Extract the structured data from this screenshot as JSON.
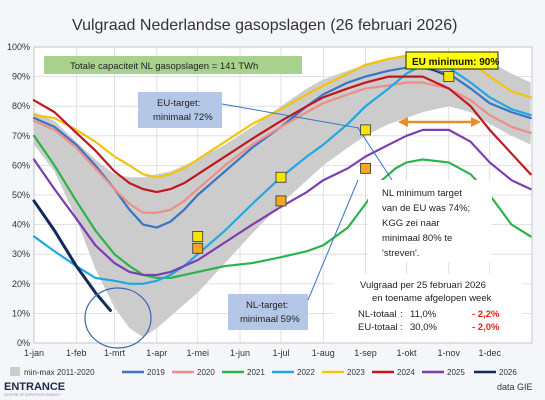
{
  "chart_data": {
    "type": "line",
    "title": "Vulgraad Nederlandse gasopslagen (26 februari 2026)",
    "ylim": [
      0,
      100
    ],
    "y_ticks": [
      "0%",
      "10%",
      "20%",
      "30%",
      "40%",
      "50%",
      "60%",
      "70%",
      "80%",
      "90%",
      "100%"
    ],
    "x_ticks": [
      "1-jan",
      "1-feb",
      "1-mrt",
      "1-apr",
      "1-mei",
      "1-jun",
      "1-jul",
      "1-aug",
      "1-sep",
      "1-okt",
      "1-nov",
      "1-dec"
    ],
    "x_tick_days": [
      0,
      31,
      59,
      90,
      120,
      151,
      181,
      212,
      243,
      273,
      304,
      334
    ],
    "grid": true,
    "legend_position": "bottom",
    "band": {
      "name": "min-max 2011-2020",
      "color": "#cccccc",
      "min": [
        [
          0,
          67
        ],
        [
          15,
          58
        ],
        [
          31,
          42
        ],
        [
          45,
          25
        ],
        [
          59,
          12
        ],
        [
          70,
          5
        ],
        [
          80,
          2
        ],
        [
          90,
          5
        ],
        [
          100,
          9
        ],
        [
          110,
          13
        ],
        [
          120,
          17
        ],
        [
          140,
          27
        ],
        [
          160,
          37
        ],
        [
          181,
          47
        ],
        [
          200,
          55
        ],
        [
          212,
          60
        ],
        [
          230,
          66
        ],
        [
          243,
          70
        ],
        [
          260,
          74
        ],
        [
          273,
          76
        ],
        [
          285,
          78
        ],
        [
          304,
          80
        ],
        [
          320,
          78
        ],
        [
          334,
          74
        ],
        [
          350,
          70
        ],
        [
          364,
          67
        ]
      ],
      "max": [
        [
          0,
          78
        ],
        [
          15,
          75
        ],
        [
          31,
          68
        ],
        [
          45,
          62
        ],
        [
          59,
          57
        ],
        [
          70,
          56
        ],
        [
          80,
          56
        ],
        [
          90,
          57
        ],
        [
          100,
          58
        ],
        [
          110,
          60
        ],
        [
          120,
          62
        ],
        [
          140,
          67
        ],
        [
          160,
          73
        ],
        [
          181,
          80
        ],
        [
          200,
          86
        ],
        [
          212,
          89
        ],
        [
          230,
          92
        ],
        [
          243,
          94
        ],
        [
          260,
          96
        ],
        [
          273,
          97
        ],
        [
          285,
          98
        ],
        [
          304,
          98
        ],
        [
          320,
          97
        ],
        [
          334,
          95
        ],
        [
          350,
          91
        ],
        [
          364,
          88
        ]
      ]
    },
    "series": [
      {
        "name": "2019",
        "color": "#3a74c4",
        "points": [
          [
            0,
            76
          ],
          [
            15,
            73
          ],
          [
            31,
            67
          ],
          [
            45,
            60
          ],
          [
            59,
            52
          ],
          [
            70,
            45
          ],
          [
            80,
            40
          ],
          [
            90,
            39
          ],
          [
            100,
            41
          ],
          [
            110,
            45
          ],
          [
            120,
            50
          ],
          [
            140,
            58
          ],
          [
            160,
            66
          ],
          [
            181,
            73
          ],
          [
            200,
            80
          ],
          [
            212,
            84
          ],
          [
            230,
            88
          ],
          [
            243,
            90
          ],
          [
            260,
            92
          ],
          [
            273,
            93
          ],
          [
            285,
            93
          ],
          [
            304,
            91
          ],
          [
            320,
            86
          ],
          [
            334,
            81
          ],
          [
            350,
            78
          ],
          [
            364,
            76
          ]
        ]
      },
      {
        "name": "2020",
        "color": "#ef8e86",
        "points": [
          [
            0,
            75
          ],
          [
            15,
            72
          ],
          [
            31,
            66
          ],
          [
            45,
            59
          ],
          [
            59,
            52
          ],
          [
            70,
            47
          ],
          [
            80,
            44
          ],
          [
            90,
            44
          ],
          [
            100,
            45
          ],
          [
            110,
            48
          ],
          [
            120,
            52
          ],
          [
            140,
            60
          ],
          [
            160,
            67
          ],
          [
            181,
            73
          ],
          [
            200,
            78
          ],
          [
            212,
            81
          ],
          [
            230,
            84
          ],
          [
            243,
            86
          ],
          [
            260,
            87
          ],
          [
            273,
            88
          ],
          [
            285,
            88
          ],
          [
            304,
            86
          ],
          [
            320,
            82
          ],
          [
            334,
            77
          ],
          [
            350,
            73
          ],
          [
            364,
            71
          ]
        ]
      },
      {
        "name": "2021",
        "color": "#2eb34a",
        "points": [
          [
            0,
            70
          ],
          [
            15,
            60
          ],
          [
            31,
            48
          ],
          [
            45,
            38
          ],
          [
            59,
            30
          ],
          [
            70,
            26
          ],
          [
            80,
            23
          ],
          [
            90,
            22
          ],
          [
            100,
            22
          ],
          [
            110,
            23
          ],
          [
            120,
            24
          ],
          [
            140,
            26
          ],
          [
            160,
            27
          ],
          [
            181,
            29
          ],
          [
            200,
            31
          ],
          [
            212,
            33
          ],
          [
            230,
            39
          ],
          [
            243,
            47
          ],
          [
            255,
            55
          ],
          [
            265,
            59
          ],
          [
            273,
            61
          ],
          [
            285,
            62
          ],
          [
            304,
            61
          ],
          [
            320,
            57
          ],
          [
            334,
            50
          ],
          [
            350,
            40
          ],
          [
            364,
            36
          ]
        ]
      },
      {
        "name": "2022",
        "color": "#1fa8e3",
        "points": [
          [
            0,
            36
          ],
          [
            15,
            31
          ],
          [
            31,
            26
          ],
          [
            45,
            22
          ],
          [
            59,
            21
          ],
          [
            70,
            20
          ],
          [
            80,
            20
          ],
          [
            90,
            21
          ],
          [
            100,
            23
          ],
          [
            110,
            26
          ],
          [
            120,
            30
          ],
          [
            140,
            38
          ],
          [
            160,
            47
          ],
          [
            181,
            56
          ],
          [
            200,
            63
          ],
          [
            212,
            67
          ],
          [
            230,
            74
          ],
          [
            243,
            80
          ],
          [
            260,
            86
          ],
          [
            273,
            91
          ],
          [
            285,
            94
          ],
          [
            304,
            93
          ],
          [
            320,
            88
          ],
          [
            334,
            83
          ],
          [
            350,
            79
          ],
          [
            364,
            77
          ]
        ]
      },
      {
        "name": "2023",
        "color": "#f2c40f",
        "points": [
          [
            0,
            77
          ],
          [
            15,
            76
          ],
          [
            31,
            72
          ],
          [
            45,
            68
          ],
          [
            59,
            63
          ],
          [
            70,
            60
          ],
          [
            80,
            57
          ],
          [
            90,
            56
          ],
          [
            100,
            57
          ],
          [
            110,
            59
          ],
          [
            120,
            62
          ],
          [
            140,
            68
          ],
          [
            160,
            74
          ],
          [
            181,
            79
          ],
          [
            200,
            84
          ],
          [
            212,
            87
          ],
          [
            230,
            91
          ],
          [
            243,
            94
          ],
          [
            260,
            96
          ],
          [
            273,
            97
          ],
          [
            285,
            98
          ],
          [
            304,
            98
          ],
          [
            320,
            95
          ],
          [
            334,
            90
          ],
          [
            350,
            85
          ],
          [
            364,
            83
          ]
        ]
      },
      {
        "name": "2024",
        "color": "#c11720",
        "points": [
          [
            0,
            82
          ],
          [
            15,
            78
          ],
          [
            31,
            71
          ],
          [
            45,
            65
          ],
          [
            59,
            58
          ],
          [
            70,
            54
          ],
          [
            80,
            52
          ],
          [
            90,
            51
          ],
          [
            100,
            52
          ],
          [
            110,
            54
          ],
          [
            120,
            57
          ],
          [
            140,
            63
          ],
          [
            160,
            69
          ],
          [
            181,
            75
          ],
          [
            200,
            80
          ],
          [
            212,
            83
          ],
          [
            230,
            86
          ],
          [
            243,
            88
          ],
          [
            260,
            90
          ],
          [
            273,
            90
          ],
          [
            285,
            90
          ],
          [
            304,
            86
          ],
          [
            320,
            80
          ],
          [
            334,
            72
          ],
          [
            350,
            64
          ],
          [
            364,
            57
          ]
        ]
      },
      {
        "name": "2025",
        "color": "#7a3fb0",
        "points": [
          [
            0,
            62
          ],
          [
            15,
            52
          ],
          [
            31,
            42
          ],
          [
            45,
            33
          ],
          [
            59,
            27
          ],
          [
            70,
            24
          ],
          [
            80,
            23
          ],
          [
            90,
            23
          ],
          [
            100,
            24
          ],
          [
            110,
            26
          ],
          [
            120,
            28
          ],
          [
            140,
            34
          ],
          [
            160,
            40
          ],
          [
            181,
            46
          ],
          [
            200,
            51
          ],
          [
            212,
            55
          ],
          [
            230,
            59
          ],
          [
            243,
            63
          ],
          [
            260,
            67
          ],
          [
            273,
            70
          ],
          [
            285,
            72
          ],
          [
            304,
            72
          ],
          [
            320,
            68
          ],
          [
            334,
            61
          ],
          [
            350,
            55
          ],
          [
            364,
            52
          ]
        ]
      },
      {
        "name": "2026",
        "color": "#102a5c",
        "points": [
          [
            0,
            48
          ],
          [
            15,
            38
          ],
          [
            31,
            26
          ],
          [
            45,
            17
          ],
          [
            56,
            11
          ]
        ]
      }
    ],
    "markers": [
      {
        "label": "target",
        "x": 120,
        "y": 36,
        "color": "#f5e600"
      },
      {
        "label": "minimum",
        "x": 120,
        "y": 32,
        "color": "#f5a623"
      },
      {
        "label": "target",
        "x": 181,
        "y": 56,
        "color": "#f5e600"
      },
      {
        "label": "minimum",
        "x": 181,
        "y": 48,
        "color": "#f5a623"
      },
      {
        "label": "target",
        "x": 243,
        "y": 72,
        "color": "#f5e600"
      },
      {
        "label": "minimum",
        "x": 243,
        "y": 59,
        "color": "#f5a623"
      },
      {
        "label": "target",
        "x": 304,
        "y": 90,
        "color": "#f5e600"
      }
    ]
  },
  "annotations": {
    "capacity": "Totale capaciteit NL gasopslagen = 141 TWh",
    "eu_minimum": "EU minimum: 90%",
    "eu_target_line1": "EU-target:",
    "eu_target_line2": "minimaal 72%",
    "nl_target_line1": "NL-target:",
    "nl_target_line2": "minimaal 59%",
    "nl_min_lines": [
      "NL minimum target",
      "van de EU was 74%;",
      "KGG zei naar",
      "minimaal 80% te",
      "'streven'."
    ],
    "stats": {
      "heading1": "Vulgraad per 25 februari 2026",
      "heading2": "en toename afgelopen week",
      "nl_label": "NL-totaal",
      "nl_value": "11,0%",
      "nl_change": "- 2,2%",
      "eu_label": "EU-totaal",
      "eu_value": "30,0%",
      "eu_change": "- 2,0%"
    }
  },
  "footer": {
    "brand": "ENTRANCE",
    "brand_sub": "CENTRE OF EXPERTISE ENERGY",
    "source": "data GIE"
  }
}
